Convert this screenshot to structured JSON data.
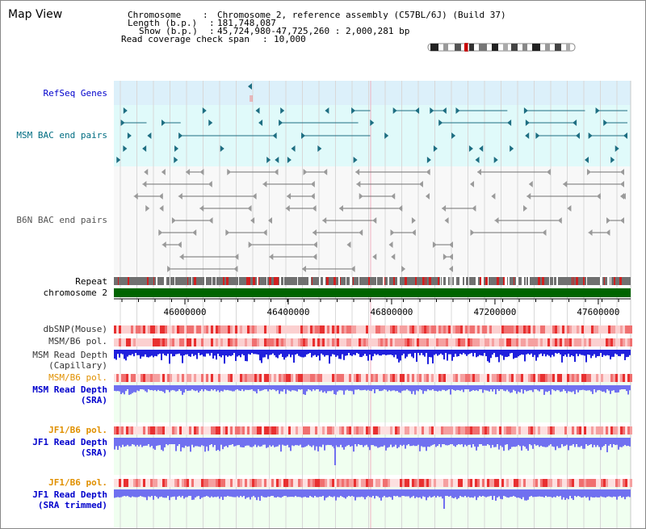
{
  "app_title": "Map View",
  "info": {
    "chromosome_label": "Chromosome",
    "chromosome_value": "Chromosome 2, reference assembly (C57BL/6J) (Build 37)",
    "length_label": "Length (b.p.)",
    "length_value": "181,748,087",
    "show_label": "Show (b.p.)",
    "show_value": "45,724,980-47,725,260 : 2,000,281 bp",
    "span_label": "Read coverage check span",
    "span_value": "10,000"
  },
  "tracks": {
    "refseq": "RefSeq Genes",
    "msm_bac": "MSM BAC end pairs",
    "b6n_bac": "B6N BAC end pairs",
    "repeat": "Repeat",
    "chromosome": "chromosome 2",
    "dbsnp": "dbSNP(Mouse)",
    "msm_b6_pol_1": "MSM/B6 pol.",
    "msm_depth_cap_1": "MSM Read Depth",
    "msm_depth_cap_2": "(Capillary)",
    "msm_b6_pol_2": "MSM/B6 pol.",
    "msm_depth_sra_1": "MSM Read Depth",
    "msm_depth_sra_2": "(SRA)",
    "jf1_b6_pol_1": "JF1/B6 pol.",
    "jf1_depth_sra_1": "JF1 Read Depth",
    "jf1_depth_sra_2": "(SRA)",
    "jf1_b6_pol_2": "JF1/B6 pol.",
    "jf1_depth_trim_1": "JF1 Read Depth",
    "jf1_depth_trim_2": "(SRA trimmed)"
  },
  "axis": {
    "ticks": [
      "46000000",
      "46400000",
      "46800000",
      "47200000",
      "47600000"
    ],
    "tick_values": [
      46000000,
      46400000,
      46800000,
      47200000,
      47600000
    ],
    "range": [
      45724980,
      47725260
    ]
  },
  "colors": {
    "refseq_bg": "#dcf0fa",
    "bac_bg": "#e0fafa",
    "msm_feature": "#1e6e82",
    "b6n_feature": "#707070",
    "chromosome_bar": "#006400",
    "pol_red": "#f04040",
    "depth_blue": "#2020dd",
    "depth_light": "#7070f0",
    "label_blue": "#0000cc",
    "label_teal": "#006d82",
    "label_orange": "#e09000",
    "label_gray": "#333333",
    "sra_bg": "#f0fff0"
  }
}
